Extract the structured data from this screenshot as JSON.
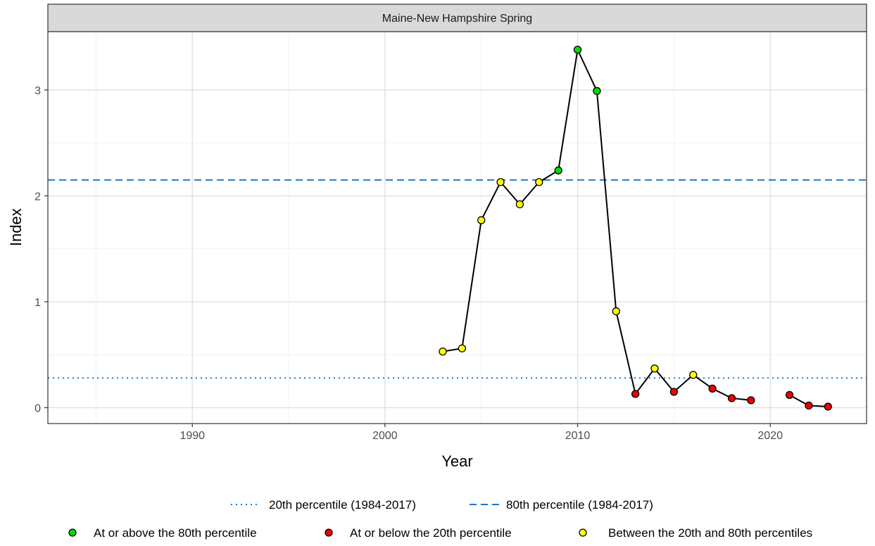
{
  "chart_data": {
    "type": "line",
    "title": "",
    "facet_label": "Maine-New Hampshire Spring",
    "xlabel": "Year",
    "ylabel": "Index",
    "xlim": [
      1982.5,
      2025
    ],
    "ylim": [
      -0.15,
      3.55
    ],
    "x_ticks": [
      1990,
      2000,
      2010,
      2020
    ],
    "x_minor_ticks": [
      1985,
      1995,
      2005,
      2015
    ],
    "y_ticks": [
      0,
      1,
      2,
      3
    ],
    "y_minor_ticks": [
      0.5,
      1.5,
      2.5
    ],
    "grid": true,
    "legend_position": "bottom",
    "reference_lines": [
      {
        "label": "20th percentile (1984-2017)",
        "value": 0.28,
        "style": "dotted",
        "color": "#1f78c8"
      },
      {
        "label": "80th percentile (1984-2017)",
        "value": 2.15,
        "style": "dashed",
        "color": "#1f78c8"
      }
    ],
    "categories_legend": [
      {
        "key": "high",
        "label": "At or above the 80th percentile",
        "color": "#00dd00"
      },
      {
        "key": "low",
        "label": "At or below the 20th percentile",
        "color": "#ee0000"
      },
      {
        "key": "mid",
        "label": "Between the 20th and 80th percentiles",
        "color": "#ffff00"
      }
    ],
    "series": [
      {
        "segments": [
          [
            {
              "x": 2003,
              "y": 0.53,
              "cat": "mid"
            },
            {
              "x": 2004,
              "y": 0.56,
              "cat": "mid"
            },
            {
              "x": 2005,
              "y": 1.77,
              "cat": "mid"
            },
            {
              "x": 2006,
              "y": 2.13,
              "cat": "mid"
            },
            {
              "x": 2007,
              "y": 1.92,
              "cat": "mid"
            },
            {
              "x": 2008,
              "y": 2.13,
              "cat": "mid"
            },
            {
              "x": 2009,
              "y": 2.24,
              "cat": "high"
            },
            {
              "x": 2010,
              "y": 3.38,
              "cat": "high"
            },
            {
              "x": 2011,
              "y": 2.99,
              "cat": "high"
            },
            {
              "x": 2012,
              "y": 0.91,
              "cat": "mid"
            },
            {
              "x": 2013,
              "y": 0.13,
              "cat": "low"
            },
            {
              "x": 2014,
              "y": 0.37,
              "cat": "mid"
            },
            {
              "x": 2015,
              "y": 0.15,
              "cat": "low"
            },
            {
              "x": 2016,
              "y": 0.31,
              "cat": "mid"
            },
            {
              "x": 2017,
              "y": 0.18,
              "cat": "low"
            },
            {
              "x": 2018,
              "y": 0.09,
              "cat": "low"
            },
            {
              "x": 2019,
              "y": 0.07,
              "cat": "low"
            }
          ],
          [
            {
              "x": 2021,
              "y": 0.12,
              "cat": "low"
            },
            {
              "x": 2022,
              "y": 0.02,
              "cat": "low"
            },
            {
              "x": 2023,
              "y": 0.01,
              "cat": "low"
            }
          ]
        ]
      }
    ]
  }
}
